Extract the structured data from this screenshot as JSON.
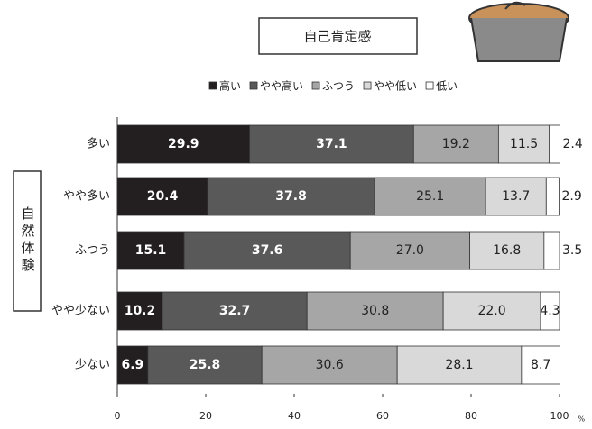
{
  "chart_data": {
    "type": "stacked-bar-horizontal",
    "title": "自己肯定感",
    "y_label": "自然体験",
    "x_unit": "%",
    "categories": [
      "多い",
      "やや多い",
      "ふつう",
      "やや少ない",
      "少ない"
    ],
    "series": [
      {
        "name": "高い",
        "color": "#231f20",
        "values": [
          29.9,
          20.4,
          15.1,
          10.2,
          6.9
        ],
        "value_labels": [
          "29.9",
          "20.4",
          "15.1",
          "10.2",
          "6.9"
        ]
      },
      {
        "name": "やや高い",
        "color": "#595959",
        "values": [
          37.1,
          37.8,
          37.6,
          32.7,
          25.8
        ],
        "value_labels": [
          "37.1",
          "37.8",
          "37.6",
          "32.7",
          "25.8"
        ]
      },
      {
        "name": "ふつう",
        "color": "#a6a6a6",
        "values": [
          19.2,
          25.1,
          27.0,
          30.8,
          30.6
        ],
        "value_labels": [
          "19.2",
          "25.1",
          "27.0",
          "30.8",
          "30.6"
        ]
      },
      {
        "name": "やや低い",
        "color": "#d9d9d9",
        "values": [
          11.5,
          13.7,
          16.8,
          22.0,
          28.1
        ],
        "value_labels": [
          "11.5",
          "13.7",
          "16.8",
          "22.0",
          "28.1"
        ]
      },
      {
        "name": "低い",
        "color": "#ffffff",
        "values": [
          2.4,
          2.9,
          3.5,
          4.3,
          8.7
        ],
        "value_labels": [
          "2.4",
          "2.9",
          "3.5",
          "4.3",
          "8.7"
        ]
      }
    ],
    "xlim": [
      0,
      100
    ],
    "xticks": [
      0,
      20,
      40,
      60,
      80,
      100
    ]
  }
}
